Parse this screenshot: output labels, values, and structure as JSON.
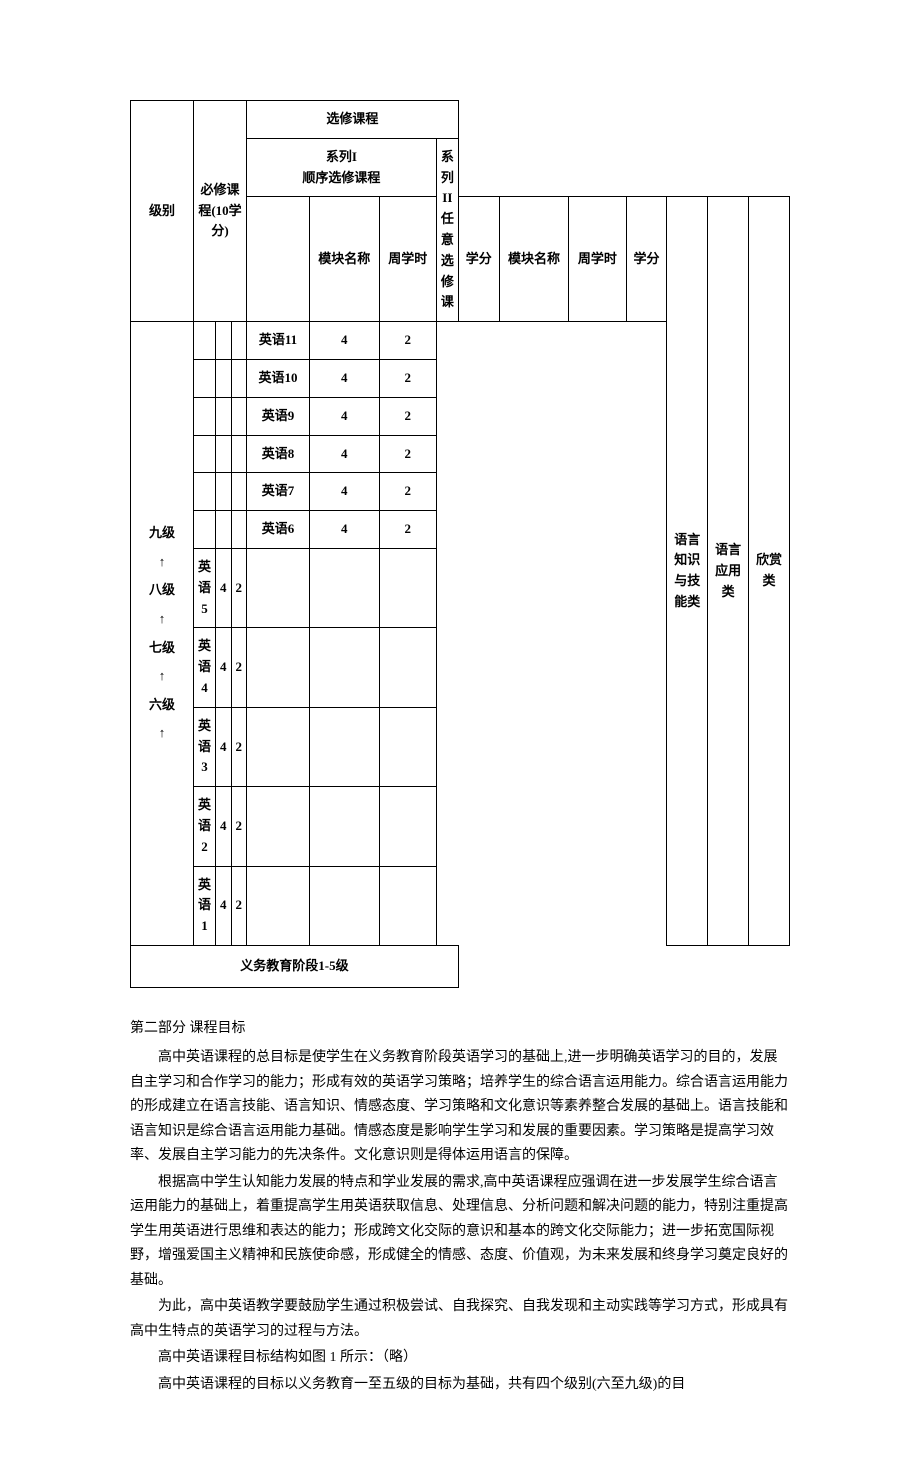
{
  "table": {
    "header": {
      "level": "级别",
      "compulsory": "必修课程(10学分)",
      "elective": "选修课程",
      "series1": "系列I",
      "series1_sub": "顺序选修课程",
      "series2": "系列II",
      "series2_sub": "任意选修课",
      "module_name": "模块名称",
      "weekly_hours": "周学时",
      "credits": "学分"
    },
    "level_ladder": "九级\n↑\n八级\n↑\n七级\n↑\n六级\n↑",
    "elective_rows": [
      {
        "name": "英语11",
        "hours": "4",
        "credits": "2"
      },
      {
        "name": "英语10",
        "hours": "4",
        "credits": "2"
      },
      {
        "name": "英语9",
        "hours": "4",
        "credits": "2"
      },
      {
        "name": "英语8",
        "hours": "4",
        "credits": "2"
      },
      {
        "name": "英语7",
        "hours": "4",
        "credits": "2"
      },
      {
        "name": "英语6",
        "hours": "4",
        "credits": "2"
      }
    ],
    "compulsory_rows": [
      {
        "name": "英语5",
        "hours": "4",
        "credits": "2"
      },
      {
        "name": "英语4",
        "hours": "4",
        "credits": "2"
      },
      {
        "name": "英语3",
        "hours": "4",
        "credits": "2"
      },
      {
        "name": "英语2",
        "hours": "4",
        "credits": "2"
      },
      {
        "name": "英语1",
        "hours": "4",
        "credits": "2"
      }
    ],
    "category1": "语言知识与技能类",
    "category2": "语言应用类",
    "category3": "欣赏类",
    "footer": "义务教育阶段1-5级"
  },
  "section": {
    "title": "第二部分    课程目标",
    "p1": "高中英语课程的总目标是使学生在义务教育阶段英语学习的基础上,进一步明确英语学习的目的，发展自主学习和合作学习的能力；形成有效的英语学习策略；培养学生的综合语言运用能力。综合语言运用能力的形成建立在语言技能、语言知识、情感态度、学习策略和文化意识等素养整合发展的基础上。语言技能和语言知识是综合语言运用能力基础。情感态度是影响学生学习和发展的重要因素。学习策略是提高学习效率、发展自主学习能力的先决条件。文化意识则是得体运用语言的保障。",
    "p2": "根据高中学生认知能力发展的特点和学业发展的需求,高中英语课程应强调在进一步发展学生综合语言运用能力的基础上，着重提高学生用英语获取信息、处理信息、分析问题和解决问题的能力，特别注重提高学生用英语进行思维和表达的能力；形成跨文化交际的意识和基本的跨文化交际能力；进一步拓宽国际视野，增强爱国主义精神和民族使命感，形成健全的情感、态度、价值观，为未来发展和终身学习奠定良好的基础。",
    "p3": "为此，高中英语教学要鼓励学生通过积极尝试、自我探究、自我发现和主动实践等学习方式，形成具有高中生特点的英语学习的过程与方法。",
    "p4": "高中英语课程目标结构如图 1 所示：（略）",
    "p5": "高中英语课程的目标以义务教育一至五级的目标为基础，共有四个级别(六至九级)的目"
  }
}
